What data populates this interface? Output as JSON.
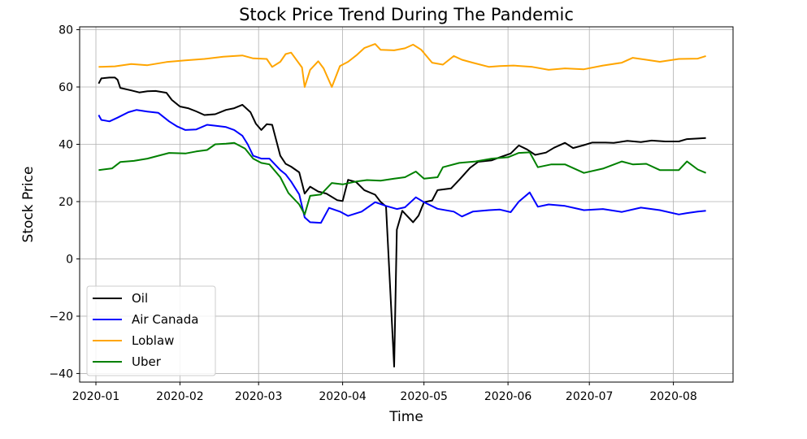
{
  "chart_data": {
    "type": "line",
    "title": "Stock Price Trend During The Pandemic",
    "xlabel": "Time",
    "ylabel": "Stock Price",
    "xlim": [
      "2019-12-26",
      "2020-08-23"
    ],
    "ylim": [
      -43,
      81
    ],
    "x_ticks": [
      "2020-01",
      "2020-02",
      "2020-03",
      "2020-04",
      "2020-05",
      "2020-06",
      "2020-07",
      "2020-08"
    ],
    "y_ticks": [
      -40,
      -20,
      0,
      20,
      40,
      60,
      80
    ],
    "grid": true,
    "legend_position": "lower-left",
    "series": [
      {
        "name": "Oil",
        "color": "#000000",
        "points": [
          [
            "2020-01-02",
            61.2
          ],
          [
            "2020-01-03",
            63.0
          ],
          [
            "2020-01-06",
            63.3
          ],
          [
            "2020-01-08",
            63.3
          ],
          [
            "2020-01-09",
            62.5
          ],
          [
            "2020-01-10",
            59.7
          ],
          [
            "2020-01-14",
            58.8
          ],
          [
            "2020-01-17",
            58.1
          ],
          [
            "2020-01-20",
            58.5
          ],
          [
            "2020-01-23",
            58.6
          ],
          [
            "2020-01-27",
            58.0
          ],
          [
            "2020-01-29",
            55.5
          ],
          [
            "2020-02-01",
            53.2
          ],
          [
            "2020-02-04",
            52.6
          ],
          [
            "2020-02-07",
            51.5
          ],
          [
            "2020-02-10",
            50.2
          ],
          [
            "2020-02-14",
            50.5
          ],
          [
            "2020-02-18",
            52.0
          ],
          [
            "2020-02-21",
            52.6
          ],
          [
            "2020-02-24",
            53.8
          ],
          [
            "2020-02-27",
            51.2
          ],
          [
            "2020-02-29",
            47.2
          ],
          [
            "2020-03-02",
            45.0
          ],
          [
            "2020-03-04",
            47.0
          ],
          [
            "2020-03-06",
            46.8
          ],
          [
            "2020-03-09",
            36.0
          ],
          [
            "2020-03-11",
            33.2
          ],
          [
            "2020-03-13",
            32.2
          ],
          [
            "2020-03-16",
            30.2
          ],
          [
            "2020-03-18",
            22.8
          ],
          [
            "2020-03-20",
            25.2
          ],
          [
            "2020-03-23",
            23.5
          ],
          [
            "2020-03-26",
            22.8
          ],
          [
            "2020-03-30",
            20.5
          ],
          [
            "2020-04-01",
            20.2
          ],
          [
            "2020-04-03",
            27.6
          ],
          [
            "2020-04-06",
            26.8
          ],
          [
            "2020-04-09",
            24.0
          ],
          [
            "2020-04-13",
            22.4
          ],
          [
            "2020-04-15",
            19.9
          ],
          [
            "2020-04-17",
            18.3
          ],
          [
            "2020-04-20",
            -37.6
          ],
          [
            "2020-04-21",
            10.2
          ],
          [
            "2020-04-23",
            16.8
          ],
          [
            "2020-04-27",
            12.8
          ],
          [
            "2020-04-29",
            15.1
          ],
          [
            "2020-05-01",
            19.8
          ],
          [
            "2020-05-04",
            20.4
          ],
          [
            "2020-05-06",
            24.0
          ],
          [
            "2020-05-11",
            24.6
          ],
          [
            "2020-05-14",
            27.6
          ],
          [
            "2020-05-18",
            31.8
          ],
          [
            "2020-05-21",
            33.9
          ],
          [
            "2020-05-26",
            34.4
          ],
          [
            "2020-05-29",
            35.5
          ],
          [
            "2020-06-02",
            36.8
          ],
          [
            "2020-06-05",
            39.6
          ],
          [
            "2020-06-08",
            38.2
          ],
          [
            "2020-06-11",
            36.3
          ],
          [
            "2020-06-15",
            37.1
          ],
          [
            "2020-06-18",
            38.8
          ],
          [
            "2020-06-22",
            40.5
          ],
          [
            "2020-06-25",
            38.7
          ],
          [
            "2020-06-29",
            39.7
          ],
          [
            "2020-07-02",
            40.6
          ],
          [
            "2020-07-07",
            40.6
          ],
          [
            "2020-07-10",
            40.5
          ],
          [
            "2020-07-15",
            41.2
          ],
          [
            "2020-07-20",
            40.8
          ],
          [
            "2020-07-24",
            41.3
          ],
          [
            "2020-07-29",
            41.0
          ],
          [
            "2020-08-03",
            41.0
          ],
          [
            "2020-08-06",
            41.8
          ],
          [
            "2020-08-10",
            42.0
          ],
          [
            "2020-08-13",
            42.2
          ]
        ]
      },
      {
        "name": "Air Canada",
        "color": "#0000ff",
        "points": [
          [
            "2020-01-02",
            50.2
          ],
          [
            "2020-01-03",
            48.5
          ],
          [
            "2020-01-06",
            48.0
          ],
          [
            "2020-01-09",
            49.3
          ],
          [
            "2020-01-13",
            51.2
          ],
          [
            "2020-01-16",
            52.0
          ],
          [
            "2020-01-20",
            51.4
          ],
          [
            "2020-01-24",
            51.0
          ],
          [
            "2020-01-28",
            48.0
          ],
          [
            "2020-01-31",
            46.2
          ],
          [
            "2020-02-03",
            45.0
          ],
          [
            "2020-02-07",
            45.2
          ],
          [
            "2020-02-11",
            46.8
          ],
          [
            "2020-02-14",
            46.5
          ],
          [
            "2020-02-18",
            46.0
          ],
          [
            "2020-02-21",
            45.0
          ],
          [
            "2020-02-24",
            43.0
          ],
          [
            "2020-02-26",
            40.0
          ],
          [
            "2020-02-28",
            36.0
          ],
          [
            "2020-03-02",
            35.0
          ],
          [
            "2020-03-05",
            35.0
          ],
          [
            "2020-03-09",
            31.0
          ],
          [
            "2020-03-11",
            29.5
          ],
          [
            "2020-03-13",
            27.0
          ],
          [
            "2020-03-16",
            22.5
          ],
          [
            "2020-03-18",
            14.5
          ],
          [
            "2020-03-20",
            12.8
          ],
          [
            "2020-03-24",
            12.6
          ],
          [
            "2020-03-27",
            17.8
          ],
          [
            "2020-03-31",
            16.5
          ],
          [
            "2020-04-03",
            15.0
          ],
          [
            "2020-04-08",
            16.5
          ],
          [
            "2020-04-13",
            19.8
          ],
          [
            "2020-04-17",
            18.5
          ],
          [
            "2020-04-21",
            17.4
          ],
          [
            "2020-04-24",
            18.0
          ],
          [
            "2020-04-28",
            21.5
          ],
          [
            "2020-05-01",
            19.8
          ],
          [
            "2020-05-06",
            17.5
          ],
          [
            "2020-05-12",
            16.5
          ],
          [
            "2020-05-15",
            14.8
          ],
          [
            "2020-05-19",
            16.5
          ],
          [
            "2020-05-25",
            17.0
          ],
          [
            "2020-05-29",
            17.2
          ],
          [
            "2020-06-02",
            16.3
          ],
          [
            "2020-06-05",
            20.0
          ],
          [
            "2020-06-09",
            23.2
          ],
          [
            "2020-06-12",
            18.2
          ],
          [
            "2020-06-16",
            19.0
          ],
          [
            "2020-06-22",
            18.5
          ],
          [
            "2020-06-29",
            17.0
          ],
          [
            "2020-07-06",
            17.4
          ],
          [
            "2020-07-13",
            16.4
          ],
          [
            "2020-07-20",
            17.9
          ],
          [
            "2020-07-27",
            17.0
          ],
          [
            "2020-08-03",
            15.5
          ],
          [
            "2020-08-06",
            16.0
          ],
          [
            "2020-08-10",
            16.5
          ],
          [
            "2020-08-13",
            16.8
          ]
        ]
      },
      {
        "name": "Loblaw",
        "color": "#ffa500",
        "points": [
          [
            "2020-01-02",
            67.0
          ],
          [
            "2020-01-08",
            67.2
          ],
          [
            "2020-01-14",
            68.0
          ],
          [
            "2020-01-20",
            67.6
          ],
          [
            "2020-01-27",
            68.7
          ],
          [
            "2020-02-03",
            69.3
          ],
          [
            "2020-02-10",
            69.8
          ],
          [
            "2020-02-17",
            70.6
          ],
          [
            "2020-02-24",
            71.0
          ],
          [
            "2020-02-28",
            70.0
          ],
          [
            "2020-03-04",
            69.8
          ],
          [
            "2020-03-06",
            67.0
          ],
          [
            "2020-03-09",
            68.8
          ],
          [
            "2020-03-11",
            71.5
          ],
          [
            "2020-03-13",
            72.0
          ],
          [
            "2020-03-17",
            66.8
          ],
          [
            "2020-03-18",
            60.0
          ],
          [
            "2020-03-20",
            66.0
          ],
          [
            "2020-03-23",
            69.0
          ],
          [
            "2020-03-25",
            66.5
          ],
          [
            "2020-03-28",
            60.0
          ],
          [
            "2020-03-31",
            67.3
          ],
          [
            "2020-04-03",
            68.8
          ],
          [
            "2020-04-06",
            71.0
          ],
          [
            "2020-04-09",
            73.6
          ],
          [
            "2020-04-13",
            75.0
          ],
          [
            "2020-04-15",
            73.0
          ],
          [
            "2020-04-20",
            72.8
          ],
          [
            "2020-04-24",
            73.5
          ],
          [
            "2020-04-27",
            74.8
          ],
          [
            "2020-04-30",
            73.0
          ],
          [
            "2020-05-04",
            68.5
          ],
          [
            "2020-05-08",
            67.8
          ],
          [
            "2020-05-12",
            70.8
          ],
          [
            "2020-05-15",
            69.5
          ],
          [
            "2020-05-19",
            68.5
          ],
          [
            "2020-05-25",
            67.0
          ],
          [
            "2020-05-29",
            67.3
          ],
          [
            "2020-06-03",
            67.5
          ],
          [
            "2020-06-10",
            67.0
          ],
          [
            "2020-06-16",
            66.0
          ],
          [
            "2020-06-22",
            66.5
          ],
          [
            "2020-06-29",
            66.2
          ],
          [
            "2020-07-06",
            67.5
          ],
          [
            "2020-07-13",
            68.5
          ],
          [
            "2020-07-17",
            70.2
          ],
          [
            "2020-07-22",
            69.5
          ],
          [
            "2020-07-27",
            68.8
          ],
          [
            "2020-08-03",
            69.8
          ],
          [
            "2020-08-10",
            69.9
          ],
          [
            "2020-08-13",
            70.8
          ]
        ]
      },
      {
        "name": "Uber",
        "color": "#008000",
        "points": [
          [
            "2020-01-02",
            31.0
          ],
          [
            "2020-01-07",
            31.6
          ],
          [
            "2020-01-10",
            33.8
          ],
          [
            "2020-01-15",
            34.2
          ],
          [
            "2020-01-20",
            35.0
          ],
          [
            "2020-01-24",
            36.0
          ],
          [
            "2020-01-28",
            37.0
          ],
          [
            "2020-02-03",
            36.8
          ],
          [
            "2020-02-07",
            37.5
          ],
          [
            "2020-02-11",
            38.0
          ],
          [
            "2020-02-14",
            40.0
          ],
          [
            "2020-02-18",
            40.2
          ],
          [
            "2020-02-21",
            40.5
          ],
          [
            "2020-02-25",
            38.5
          ],
          [
            "2020-02-28",
            35.0
          ],
          [
            "2020-03-02",
            33.5
          ],
          [
            "2020-03-05",
            33.0
          ],
          [
            "2020-03-09",
            28.5
          ],
          [
            "2020-03-12",
            23.0
          ],
          [
            "2020-03-16",
            19.0
          ],
          [
            "2020-03-18",
            15.5
          ],
          [
            "2020-03-20",
            22.0
          ],
          [
            "2020-03-24",
            22.5
          ],
          [
            "2020-03-28",
            26.5
          ],
          [
            "2020-04-01",
            26.0
          ],
          [
            "2020-04-06",
            27.0
          ],
          [
            "2020-04-10",
            27.5
          ],
          [
            "2020-04-15",
            27.3
          ],
          [
            "2020-04-20",
            28.0
          ],
          [
            "2020-04-24",
            28.5
          ],
          [
            "2020-04-28",
            30.5
          ],
          [
            "2020-05-01",
            28.0
          ],
          [
            "2020-05-06",
            28.5
          ],
          [
            "2020-05-08",
            32.0
          ],
          [
            "2020-05-14",
            33.5
          ],
          [
            "2020-05-20",
            34.0
          ],
          [
            "2020-05-26",
            35.0
          ],
          [
            "2020-06-01",
            35.5
          ],
          [
            "2020-06-05",
            37.0
          ],
          [
            "2020-06-09",
            37.2
          ],
          [
            "2020-06-12",
            32.0
          ],
          [
            "2020-06-17",
            33.0
          ],
          [
            "2020-06-22",
            33.0
          ],
          [
            "2020-06-29",
            30.0
          ],
          [
            "2020-07-06",
            31.5
          ],
          [
            "2020-07-13",
            34.0
          ],
          [
            "2020-07-17",
            33.0
          ],
          [
            "2020-07-22",
            33.2
          ],
          [
            "2020-07-27",
            31.0
          ],
          [
            "2020-08-03",
            31.0
          ],
          [
            "2020-08-06",
            34.0
          ],
          [
            "2020-08-10",
            31.2
          ],
          [
            "2020-08-13",
            30.0
          ]
        ]
      }
    ]
  }
}
